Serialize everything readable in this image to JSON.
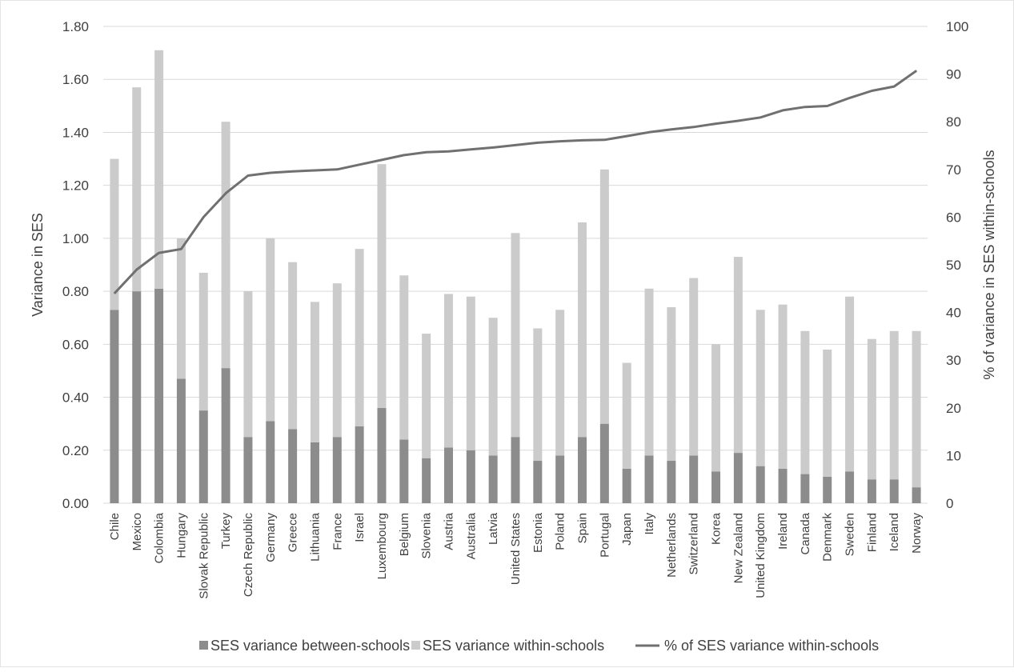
{
  "chart_data": {
    "type": "bar",
    "stacked": true,
    "title": "",
    "ylabel": "Variance in SES",
    "y2label": "% of variance in SES within-schools",
    "ylim": [
      0,
      1.8
    ],
    "y2lim": [
      0,
      100
    ],
    "yticks": [
      "0.00",
      "0.20",
      "0.40",
      "0.60",
      "0.80",
      "1.00",
      "1.20",
      "1.40",
      "1.60",
      "1.80"
    ],
    "y2ticks": [
      "0",
      "10",
      "20",
      "30",
      "40",
      "50",
      "60",
      "70",
      "80",
      "90",
      "100"
    ],
    "grid": true,
    "legend_position": "bottom",
    "categories": [
      "Chile",
      "Mexico",
      "Colombia",
      "Hungary",
      "Slovak Republic",
      "Turkey",
      "Czech Republic",
      "Germany",
      "Greece",
      "Lithuania",
      "France",
      "Israel",
      "Luxembourg",
      "Belgium",
      "Slovenia",
      "Austria",
      "Australia",
      "Latvia",
      "United States",
      "Estonia",
      "Poland",
      "Spain",
      "Portugal",
      "Japan",
      "Italy",
      "Netherlands",
      "Switzerland",
      "Korea",
      "New Zealand",
      "United Kingdom",
      "Ireland",
      "Canada",
      "Denmark",
      "Sweden",
      "Finland",
      "Iceland",
      "Norway"
    ],
    "series": [
      {
        "name": "SES variance between-schools",
        "kind": "bar",
        "color": "#8c8c8c",
        "values": [
          0.73,
          0.8,
          0.81,
          0.47,
          0.35,
          0.51,
          0.25,
          0.31,
          0.28,
          0.23,
          0.25,
          0.29,
          0.36,
          0.24,
          0.17,
          0.21,
          0.2,
          0.18,
          0.25,
          0.16,
          0.18,
          0.25,
          0.3,
          0.13,
          0.18,
          0.16,
          0.18,
          0.12,
          0.19,
          0.14,
          0.13,
          0.11,
          0.1,
          0.12,
          0.09,
          0.09,
          0.06
        ]
      },
      {
        "name": "SES variance within-schools",
        "kind": "bar",
        "color": "#cbcbcb",
        "values": [
          0.57,
          0.77,
          0.9,
          0.53,
          0.52,
          0.93,
          0.55,
          0.69,
          0.63,
          0.53,
          0.58,
          0.67,
          0.92,
          0.62,
          0.47,
          0.58,
          0.58,
          0.52,
          0.77,
          0.5,
          0.55,
          0.81,
          0.96,
          0.4,
          0.63,
          0.58,
          0.67,
          0.48,
          0.74,
          0.59,
          0.62,
          0.54,
          0.48,
          0.66,
          0.53,
          0.56,
          0.59
        ]
      },
      {
        "name": "% of SES variance within-schools",
        "kind": "line",
        "axis": "y2",
        "color": "#707070",
        "values": [
          44,
          49,
          52.5,
          53.3,
          60,
          65,
          68.7,
          69.3,
          69.6,
          69.8,
          70,
          71,
          72,
          73,
          73.6,
          73.8,
          74.2,
          74.6,
          75.1,
          75.6,
          75.9,
          76.1,
          76.2,
          77,
          77.8,
          78.4,
          78.9,
          79.6,
          80.2,
          80.9,
          82.4,
          83.1,
          83.3,
          85,
          86.5,
          87.4,
          90.7
        ]
      }
    ]
  }
}
